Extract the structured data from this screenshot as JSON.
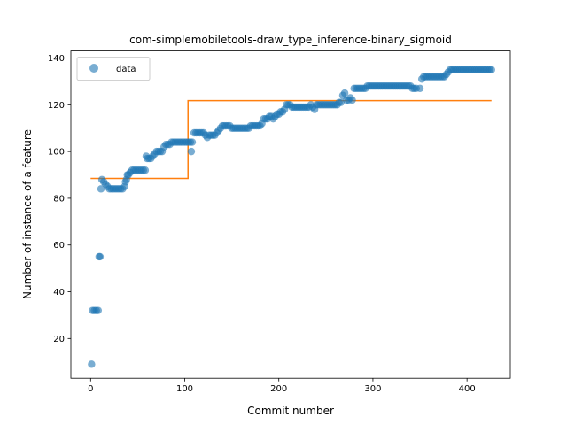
{
  "chart_data": {
    "type": "scatter",
    "title": "com-simplemobiletools-draw_type_inference-binary_sigmoid",
    "xlabel": "Commit number",
    "ylabel": "Number of instance of a feature",
    "xlim": [
      -21,
      446
    ],
    "ylim": [
      3,
      143
    ],
    "xticks": [
      0,
      100,
      200,
      300,
      400
    ],
    "yticks": [
      20,
      40,
      60,
      80,
      100,
      120,
      140
    ],
    "grid": false,
    "legend": {
      "placement": "upper left",
      "entries": [
        "data"
      ]
    },
    "colors": {
      "data": "#1f77b4",
      "fit": "#ff7f0e"
    },
    "series": [
      {
        "name": "data",
        "kind": "scatter",
        "points": [
          [
            1,
            9
          ],
          [
            2,
            32
          ],
          [
            4,
            32
          ],
          [
            6,
            32
          ],
          [
            8,
            32
          ],
          [
            9,
            55
          ],
          [
            10,
            55
          ],
          [
            11,
            84
          ],
          [
            12,
            88
          ],
          [
            14,
            87
          ],
          [
            16,
            86
          ],
          [
            18,
            85
          ],
          [
            20,
            84
          ],
          [
            22,
            84
          ],
          [
            24,
            84
          ],
          [
            26,
            84
          ],
          [
            28,
            84
          ],
          [
            30,
            84
          ],
          [
            32,
            84
          ],
          [
            34,
            84
          ],
          [
            36,
            85
          ],
          [
            37,
            87
          ],
          [
            38,
            88
          ],
          [
            39,
            90
          ],
          [
            40,
            90
          ],
          [
            42,
            91
          ],
          [
            44,
            92
          ],
          [
            46,
            92
          ],
          [
            48,
            92
          ],
          [
            50,
            92
          ],
          [
            52,
            92
          ],
          [
            54,
            92
          ],
          [
            56,
            92
          ],
          [
            58,
            92
          ],
          [
            59,
            98
          ],
          [
            60,
            97
          ],
          [
            62,
            97
          ],
          [
            64,
            97
          ],
          [
            66,
            98
          ],
          [
            68,
            99
          ],
          [
            70,
            100
          ],
          [
            72,
            100
          ],
          [
            74,
            100
          ],
          [
            76,
            100
          ],
          [
            78,
            102
          ],
          [
            80,
            103
          ],
          [
            82,
            103
          ],
          [
            84,
            103
          ],
          [
            86,
            104
          ],
          [
            88,
            104
          ],
          [
            90,
            104
          ],
          [
            92,
            104
          ],
          [
            94,
            104
          ],
          [
            96,
            104
          ],
          [
            98,
            104
          ],
          [
            100,
            104
          ],
          [
            102,
            104
          ],
          [
            104,
            104
          ],
          [
            106,
            104
          ],
          [
            107,
            100
          ],
          [
            108,
            104
          ],
          [
            110,
            108
          ],
          [
            112,
            108
          ],
          [
            114,
            108
          ],
          [
            116,
            108
          ],
          [
            118,
            108
          ],
          [
            120,
            108
          ],
          [
            122,
            107
          ],
          [
            124,
            106
          ],
          [
            126,
            107
          ],
          [
            128,
            107
          ],
          [
            130,
            107
          ],
          [
            132,
            107
          ],
          [
            134,
            108
          ],
          [
            136,
            109
          ],
          [
            138,
            110
          ],
          [
            140,
            111
          ],
          [
            142,
            111
          ],
          [
            144,
            111
          ],
          [
            146,
            111
          ],
          [
            148,
            111
          ],
          [
            150,
            110
          ],
          [
            152,
            110
          ],
          [
            154,
            110
          ],
          [
            156,
            110
          ],
          [
            158,
            110
          ],
          [
            160,
            110
          ],
          [
            162,
            110
          ],
          [
            164,
            110
          ],
          [
            166,
            110
          ],
          [
            168,
            110
          ],
          [
            170,
            111
          ],
          [
            172,
            111
          ],
          [
            174,
            111
          ],
          [
            176,
            111
          ],
          [
            178,
            111
          ],
          [
            180,
            111
          ],
          [
            182,
            112
          ],
          [
            184,
            114
          ],
          [
            186,
            114
          ],
          [
            188,
            114
          ],
          [
            190,
            115
          ],
          [
            192,
            115
          ],
          [
            194,
            114
          ],
          [
            196,
            115
          ],
          [
            198,
            116
          ],
          [
            200,
            116
          ],
          [
            202,
            117
          ],
          [
            204,
            117
          ],
          [
            206,
            118
          ],
          [
            208,
            120
          ],
          [
            210,
            120
          ],
          [
            212,
            120
          ],
          [
            214,
            119
          ],
          [
            216,
            119
          ],
          [
            218,
            119
          ],
          [
            220,
            119
          ],
          [
            222,
            119
          ],
          [
            224,
            119
          ],
          [
            226,
            119
          ],
          [
            228,
            119
          ],
          [
            230,
            119
          ],
          [
            232,
            119
          ],
          [
            234,
            120
          ],
          [
            236,
            119
          ],
          [
            238,
            118
          ],
          [
            240,
            120
          ],
          [
            242,
            120
          ],
          [
            244,
            120
          ],
          [
            246,
            120
          ],
          [
            248,
            120
          ],
          [
            250,
            120
          ],
          [
            252,
            120
          ],
          [
            254,
            120
          ],
          [
            256,
            120
          ],
          [
            258,
            120
          ],
          [
            260,
            120
          ],
          [
            262,
            120
          ],
          [
            264,
            121
          ],
          [
            266,
            121
          ],
          [
            268,
            124
          ],
          [
            270,
            125
          ],
          [
            272,
            122
          ],
          [
            274,
            122
          ],
          [
            276,
            123
          ],
          [
            278,
            122
          ],
          [
            280,
            127
          ],
          [
            282,
            127
          ],
          [
            284,
            127
          ],
          [
            286,
            127
          ],
          [
            288,
            127
          ],
          [
            290,
            127
          ],
          [
            292,
            127
          ],
          [
            294,
            128
          ],
          [
            296,
            128
          ],
          [
            298,
            128
          ],
          [
            300,
            128
          ],
          [
            302,
            128
          ],
          [
            304,
            128
          ],
          [
            306,
            128
          ],
          [
            308,
            128
          ],
          [
            310,
            128
          ],
          [
            312,
            128
          ],
          [
            314,
            128
          ],
          [
            316,
            128
          ],
          [
            318,
            128
          ],
          [
            320,
            128
          ],
          [
            322,
            128
          ],
          [
            324,
            128
          ],
          [
            326,
            128
          ],
          [
            328,
            128
          ],
          [
            330,
            128
          ],
          [
            332,
            128
          ],
          [
            334,
            128
          ],
          [
            336,
            128
          ],
          [
            338,
            128
          ],
          [
            340,
            128
          ],
          [
            342,
            127
          ],
          [
            344,
            127
          ],
          [
            346,
            127
          ],
          [
            350,
            127
          ],
          [
            352,
            131
          ],
          [
            354,
            132
          ],
          [
            356,
            132
          ],
          [
            358,
            132
          ],
          [
            360,
            132
          ],
          [
            362,
            132
          ],
          [
            364,
            132
          ],
          [
            366,
            132
          ],
          [
            368,
            132
          ],
          [
            370,
            132
          ],
          [
            372,
            132
          ],
          [
            374,
            132
          ],
          [
            376,
            132
          ],
          [
            378,
            133
          ],
          [
            380,
            134
          ],
          [
            382,
            135
          ],
          [
            384,
            135
          ],
          [
            386,
            135
          ],
          [
            388,
            135
          ],
          [
            390,
            135
          ],
          [
            392,
            135
          ],
          [
            394,
            135
          ],
          [
            396,
            135
          ],
          [
            398,
            135
          ],
          [
            400,
            135
          ],
          [
            402,
            135
          ],
          [
            404,
            135
          ],
          [
            406,
            135
          ],
          [
            408,
            135
          ],
          [
            410,
            135
          ],
          [
            412,
            135
          ],
          [
            414,
            135
          ],
          [
            416,
            135
          ],
          [
            418,
            135
          ],
          [
            420,
            135
          ],
          [
            422,
            135
          ],
          [
            424,
            135
          ],
          [
            426,
            135
          ]
        ]
      },
      {
        "kind": "line",
        "points": [
          [
            0,
            88.5
          ],
          [
            103.5,
            88.5
          ],
          [
            103.5,
            121.8
          ],
          [
            426,
            121.8
          ]
        ]
      }
    ]
  }
}
